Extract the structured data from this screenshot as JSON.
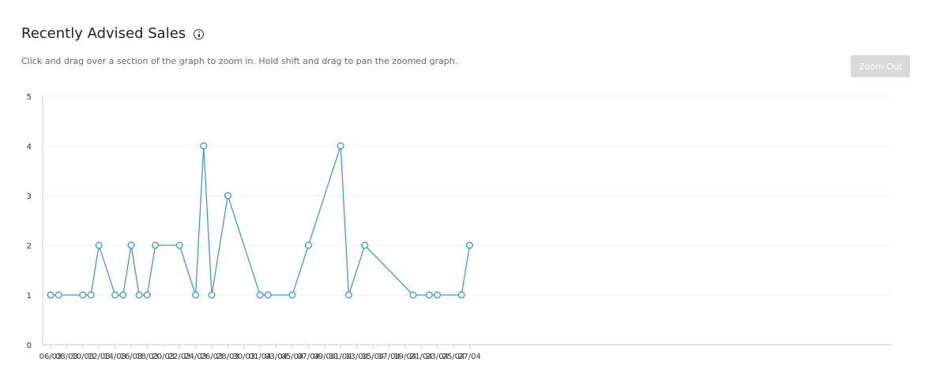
{
  "header": {
    "title": "Recently Advised Sales",
    "hint": "Click and drag over a section of the graph to zoom in. Hold shift and drag to pan the zoomed graph.",
    "zoom_out_label": "Zoom Out",
    "info_icon": "info-icon"
  },
  "colors": {
    "line": "#3d9be0",
    "grid": "#eeeeee",
    "axis": "#cccccc",
    "point_fill": "#ffffff"
  },
  "chart_data": {
    "type": "line",
    "title": "Recently Advised Sales",
    "xlabel": "",
    "ylabel": "",
    "ylim": [
      0,
      5
    ],
    "yticks": [
      0,
      1,
      2,
      3,
      4,
      5
    ],
    "grid": true,
    "x_axis_labels": [
      "06/03",
      "08/03",
      "10/03",
      "12/03",
      "14/03",
      "16/03",
      "18/03",
      "20/03",
      "22/03",
      "24/03",
      "26/03",
      "28/03",
      "30/03",
      "01/04",
      "03/04",
      "05/04",
      "07/04",
      "09/04",
      "11/04",
      "13/04",
      "15/04",
      "17/04",
      "19/04",
      "21/04",
      "23/04",
      "25/04",
      "27/04"
    ],
    "axis_start_date": "2022-03-06",
    "points": [
      {
        "x": "06/03",
        "y": 1
      },
      {
        "x": "07/03",
        "y": 1
      },
      {
        "x": "10/03",
        "y": 1
      },
      {
        "x": "11/03",
        "y": 1
      },
      {
        "x": "12/03",
        "y": 2
      },
      {
        "x": "14/03",
        "y": 1
      },
      {
        "x": "15/03",
        "y": 1
      },
      {
        "x": "16/03",
        "y": 2
      },
      {
        "x": "17/03",
        "y": 1
      },
      {
        "x": "18/03",
        "y": 1
      },
      {
        "x": "19/03",
        "y": 2
      },
      {
        "x": "22/03",
        "y": 2
      },
      {
        "x": "24/03",
        "y": 1
      },
      {
        "x": "25/03",
        "y": 4
      },
      {
        "x": "26/03",
        "y": 1
      },
      {
        "x": "28/03",
        "y": 3
      },
      {
        "x": "01/04",
        "y": 1
      },
      {
        "x": "02/04",
        "y": 1
      },
      {
        "x": "05/04",
        "y": 1
      },
      {
        "x": "07/04",
        "y": 2
      },
      {
        "x": "11/04",
        "y": 4
      },
      {
        "x": "12/04",
        "y": 1
      },
      {
        "x": "14/04",
        "y": 2
      },
      {
        "x": "20/04",
        "y": 1
      },
      {
        "x": "22/04",
        "y": 1
      },
      {
        "x": "23/04",
        "y": 1
      },
      {
        "x": "26/04",
        "y": 1
      },
      {
        "x": "27/04",
        "y": 2
      }
    ]
  }
}
